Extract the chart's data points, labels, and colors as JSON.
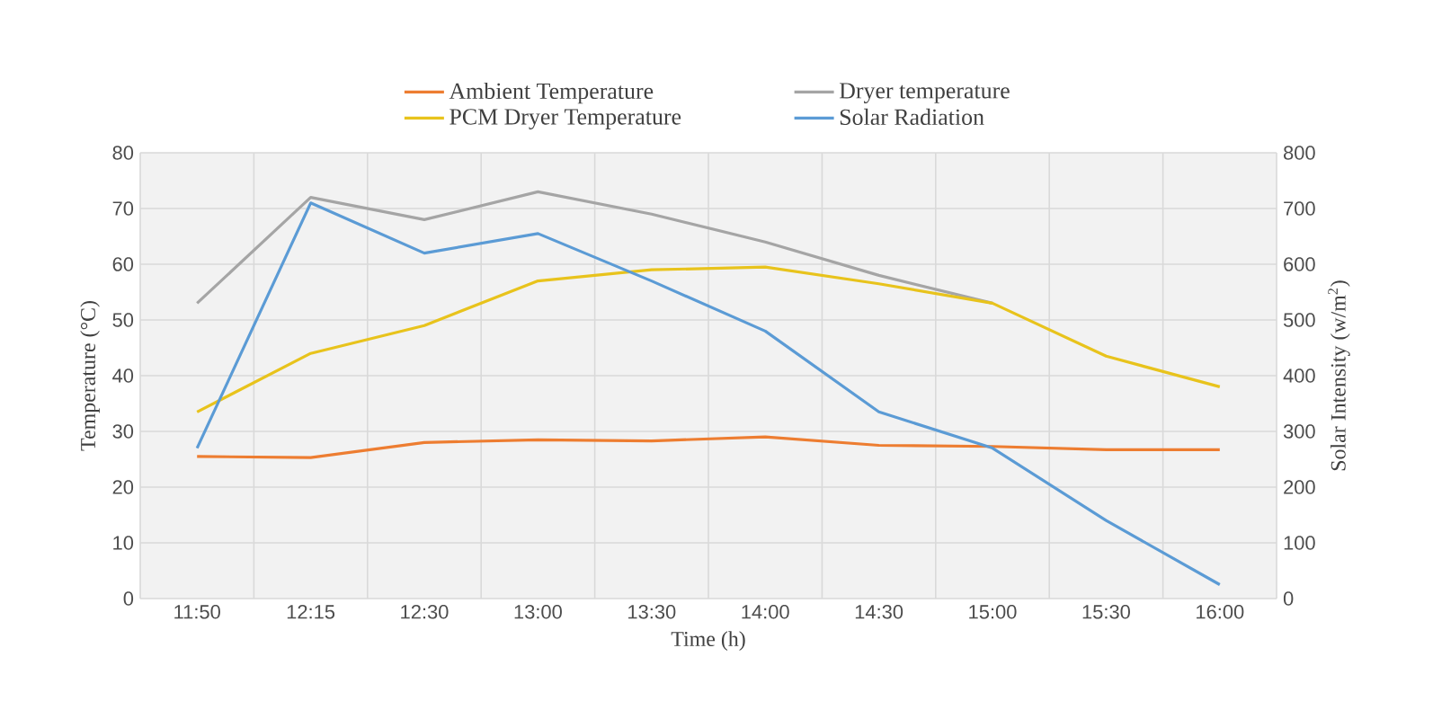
{
  "chart_data": {
    "type": "line",
    "xlabel": "Time (h)",
    "ylabel": "Temperature (°C)",
    "y2label": "Solar Intensity (w/m$^{2}$)",
    "categories": [
      "11:50",
      "12:15",
      "12:30",
      "13:00",
      "13:30",
      "14:00",
      "14:30",
      "15:00",
      "15:30",
      "16:00"
    ],
    "series": [
      {
        "name": "Ambient Temperature",
        "color": "#ed7d31",
        "values": [
          25.5,
          25.3,
          28,
          28.5,
          28.3,
          29,
          27.5,
          27.3,
          26.7,
          26.7
        ]
      },
      {
        "name": "Dryer temperature",
        "color": "#a5a5a5",
        "values": [
          53,
          72,
          68,
          73,
          69,
          64,
          58,
          53,
          null,
          null
        ]
      },
      {
        "name": "PCM Dryer Temperature",
        "color": "#e8c31c",
        "values": [
          33.5,
          44,
          49,
          57,
          59,
          59.5,
          56.5,
          53,
          43.5,
          38
        ]
      },
      {
        "name": "Solar Radiation",
        "color": "#5b9bd5",
        "axis": "y2",
        "values": [
          270,
          710,
          620,
          655,
          570,
          480,
          335,
          270,
          140,
          25
        ]
      }
    ],
    "ylim": [
      0,
      80
    ],
    "yticks": [
      0,
      10,
      20,
      30,
      40,
      50,
      60,
      70,
      80
    ],
    "y2lim": [
      0,
      800
    ],
    "y2ticks": [
      0,
      100,
      200,
      300,
      400,
      500,
      600,
      700,
      800
    ],
    "grid": true,
    "legend": "top"
  }
}
